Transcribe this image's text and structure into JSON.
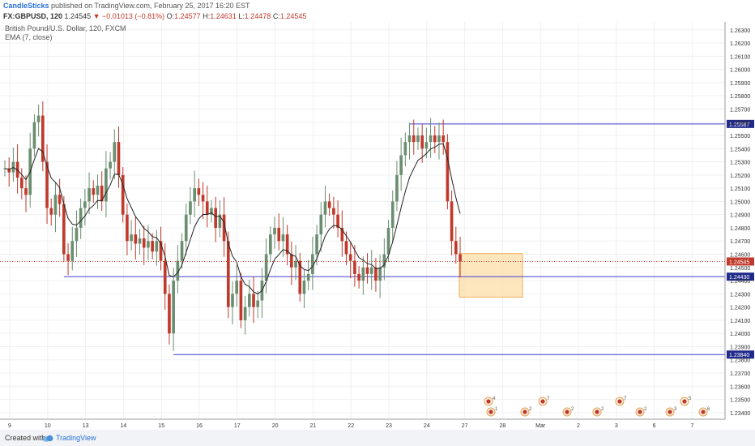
{
  "header": {
    "publisher": "CandleSticks",
    "published_text": "published on TradingView.com, February 25, 2017 16:20 EST",
    "symbol": "FX:GBPUSD, 120",
    "last": "1.24545",
    "change": "−0.01013 (−0.81%)",
    "open_label": "O:",
    "open": "1.24577",
    "high_label": "H:",
    "high": "1.24631",
    "low_label": "L:",
    "low": "1.24478",
    "close_label": "C:",
    "close": "1.24545"
  },
  "legend": {
    "title": "British Pound/U.S. Dollar, 120, FXCM",
    "indicator": "EMA (7, close)"
  },
  "footer": {
    "created_with": "Created with",
    "brand": "TradingView"
  },
  "colors": {
    "up": "#6b8e70",
    "down": "#c0392b",
    "ema": "#222222",
    "level": "#3f3fc8",
    "box_fill": "#fde2b3",
    "box_stroke": "#f2a33a",
    "grid": "#eef0f3"
  },
  "chart_data": {
    "type": "candlestick",
    "x_ticks": [
      "9",
      "10",
      "13",
      "14",
      "15",
      "16",
      "17",
      "20",
      "21",
      "22",
      "23",
      "24",
      "27",
      "28",
      "Mar",
      "2",
      "3",
      "6",
      "7"
    ],
    "y_ticks": [
      "1.26300",
      "1.26200",
      "1.26100",
      "1.26000",
      "1.25900",
      "1.25800",
      "1.25700",
      "1.25600",
      "1.25500",
      "1.25400",
      "1.25300",
      "1.25200",
      "1.25100",
      "1.25000",
      "1.24900",
      "1.24800",
      "1.24700",
      "1.24600",
      "1.24500",
      "1.24400",
      "1.24300",
      "1.24200",
      "1.24100",
      "1.24000",
      "1.23900",
      "1.23800",
      "1.23700",
      "1.23600",
      "1.23500",
      "1.23400"
    ],
    "ylim": [
      1.2335,
      1.2636
    ],
    "grid": true,
    "last_price_label": "1.24545",
    "levels": [
      {
        "label": "1.25587",
        "price": 1.25587,
        "from_candle": 96
      },
      {
        "label": "1.24430",
        "price": 1.2443,
        "from_candle": 14
      },
      {
        "label": "1.23840",
        "price": 1.2384,
        "from_candle": 40
      }
    ],
    "zone": {
      "from_price": 1.24605,
      "to_price": 1.24275,
      "span_candles": 15
    },
    "closes": [
      1.2525,
      1.2522,
      1.253,
      1.2518,
      1.251,
      1.2505,
      1.254,
      1.256,
      1.2565,
      1.253,
      1.2495,
      1.249,
      1.2505,
      1.2498,
      1.246,
      1.2455,
      1.247,
      1.248,
      1.2495,
      1.25,
      1.251,
      1.2505,
      1.2512,
      1.25,
      1.2525,
      1.253,
      1.2545,
      1.252,
      1.249,
      1.247,
      1.2475,
      1.2468,
      1.2472,
      1.2465,
      1.247,
      1.2462,
      1.247,
      1.2455,
      1.243,
      1.24,
      1.244,
      1.2455,
      1.247,
      1.249,
      1.25,
      1.251,
      1.2505,
      1.25,
      1.249,
      1.2495,
      1.248,
      1.249,
      1.247,
      1.242,
      1.243,
      1.244,
      1.241,
      1.242,
      1.243,
      1.242,
      1.2425,
      1.244,
      1.246,
      1.2475,
      1.248,
      1.247,
      1.2475,
      1.246,
      1.245,
      1.2455,
      1.243,
      1.244,
      1.2445,
      1.246,
      1.2475,
      1.249,
      1.25,
      1.2495,
      1.249,
      1.248,
      1.247,
      1.246,
      1.2455,
      1.2445,
      1.244,
      1.245,
      1.2445,
      1.245,
      1.244,
      1.245,
      1.246,
      1.248,
      1.25,
      1.252,
      1.2535,
      1.2545,
      1.255,
      1.2545,
      1.255,
      1.254,
      1.2545,
      1.255,
      1.2545,
      1.255,
      1.2545,
      1.25,
      1.247,
      1.246,
      1.24545
    ],
    "events": [
      {
        "label": "4"
      },
      {
        "label": "1"
      },
      {
        "label": "2"
      },
      {
        "label": "7"
      },
      {
        "label": "2"
      },
      {
        "label": "2"
      },
      {
        "label": "7"
      },
      {
        "label": "2"
      },
      {
        "label": "3"
      },
      {
        "label": "5"
      },
      {
        "label": "6"
      }
    ]
  }
}
